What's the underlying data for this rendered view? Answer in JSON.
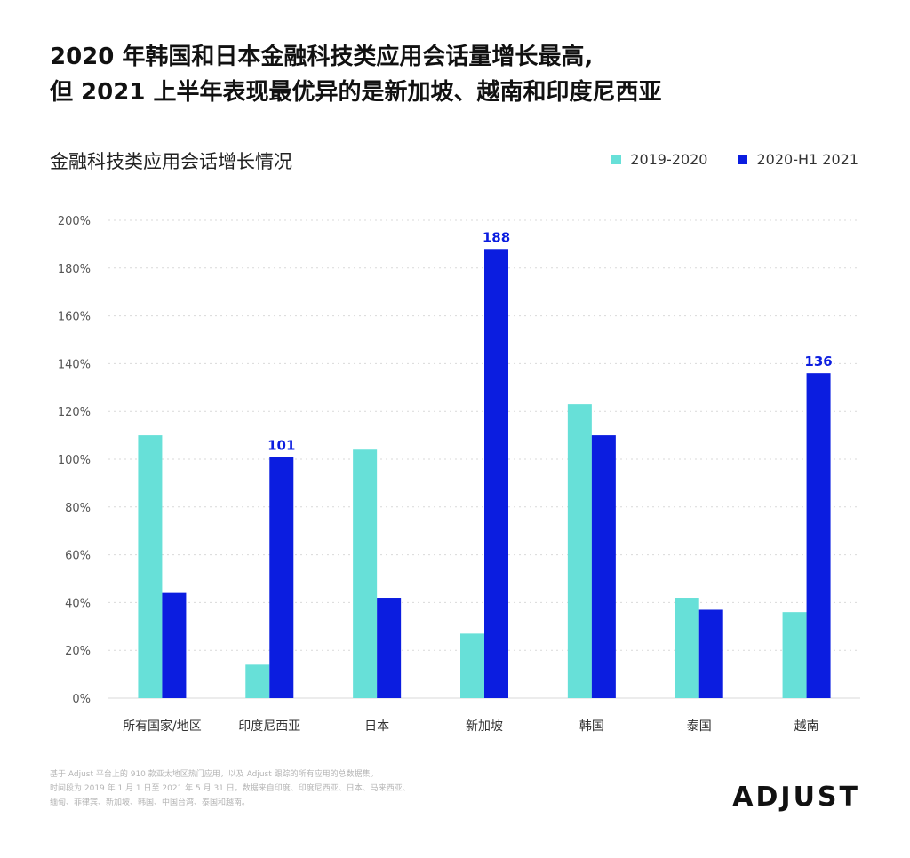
{
  "headline": {
    "line1": "2020 年韩国和日本金融科技类应用会话量增长最高,",
    "line2": "但 2021 上半年表现最优异的是新加坡、越南和印度尼西亚"
  },
  "colors": {
    "series_2019_2020": "#67e0d8",
    "series_2020_h1_2021": "#0b1de0",
    "grid": "#d9d9d9"
  },
  "chart_data": {
    "type": "bar",
    "title": "金融科技类应用会话增长情况",
    "xlabel": "",
    "ylabel": "",
    "ylim": [
      0,
      200
    ],
    "yticks": [
      "0%",
      "20%",
      "40%",
      "60%",
      "80%",
      "100%",
      "120%",
      "140%",
      "160%",
      "180%",
      "200%"
    ],
    "grid": true,
    "legend_position": "top-right",
    "categories": [
      "所有国家/地区",
      "印度尼西亚",
      "日本",
      "新加坡",
      "韩国",
      "泰国",
      "越南"
    ],
    "series": [
      {
        "name": "2019-2020",
        "values": [
          110,
          14,
          104,
          27,
          123,
          42,
          36
        ],
        "labels": [
          "",
          "",
          "",
          "",
          "",
          "",
          ""
        ]
      },
      {
        "name": "2020-H1 2021",
        "values": [
          44,
          101,
          42,
          188,
          110,
          37,
          136
        ],
        "labels": [
          "",
          "101",
          "",
          "188",
          "",
          "",
          "136"
        ]
      }
    ]
  },
  "footnote": {
    "line1": "基于 Adjust 平台上的 910 款亚太地区热门应用，以及 Adjust 跟踪的所有应用的总数据集。",
    "line2": "时间段为 2019 年 1 月 1 日至 2021 年 5 月 31 日。数据来自印度、印度尼西亚、日本、马来西亚、",
    "line3": "缅甸、菲律宾、新加坡、韩国、中国台湾、泰国和越南。"
  },
  "brand": {
    "logo_text": "ADJUST"
  }
}
